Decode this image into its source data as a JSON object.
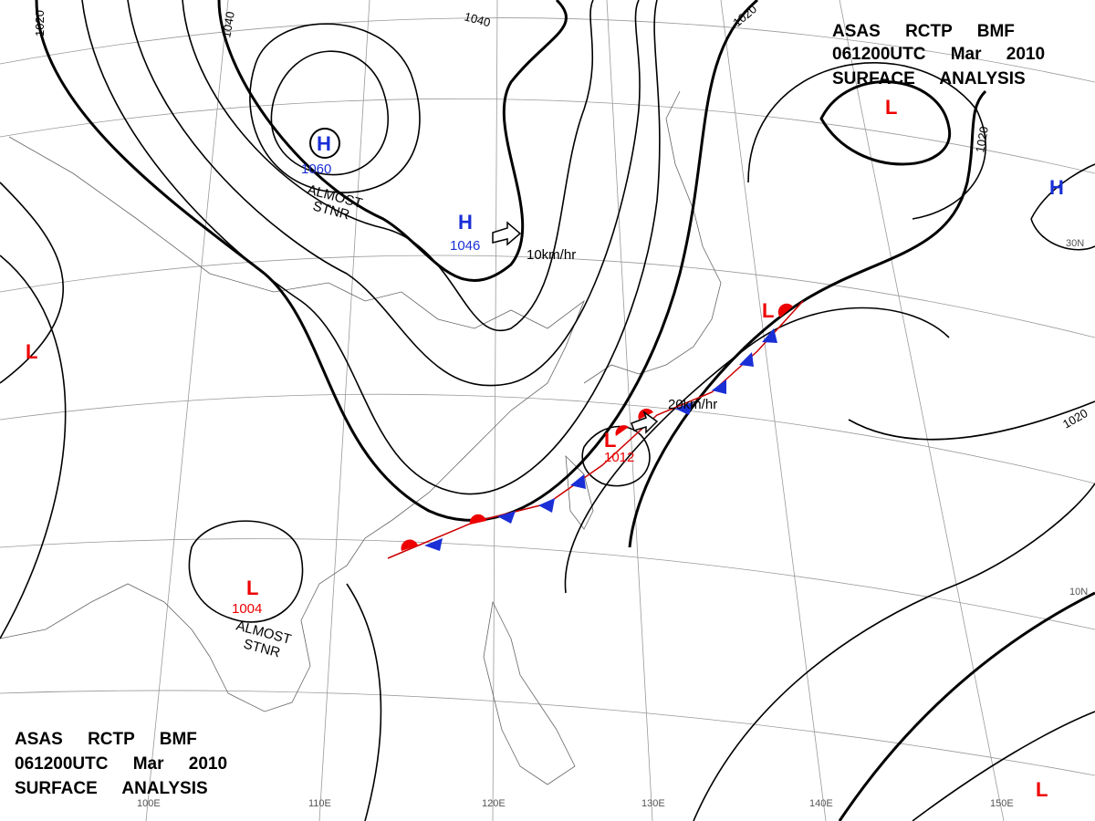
{
  "title_blocks": [
    {
      "lines": [
        "ASAS RCTP BMF",
        "061200UTC Mar 2010",
        "SURFACE ANALYSIS"
      ]
    },
    {
      "lines": [
        "ASAS RCTP BMF",
        "061200UTC Mar 2010",
        "SURFACE ANALYSIS"
      ]
    }
  ],
  "pressure_centers": [
    {
      "symbol": "H",
      "value": 1060
    },
    {
      "symbol": "H",
      "value": 1046
    },
    {
      "symbol": "L",
      "value": 1004
    },
    {
      "symbol": "L",
      "value": 1012
    },
    {
      "symbol": "H"
    },
    {
      "symbol": "L"
    },
    {
      "symbol": "L"
    },
    {
      "symbol": "L"
    },
    {
      "symbol": "L"
    }
  ],
  "isobar_labels": [
    1020,
    1040,
    1040,
    1020,
    1020,
    1020
  ],
  "notes": [
    {
      "lines": [
        "ALMOST",
        "STNR"
      ]
    },
    {
      "lines": [
        "ALMOST",
        "STNR"
      ]
    }
  ],
  "motion_labels": [
    "10km/hr",
    "20km/hr"
  ],
  "longitudes": [
    "100E",
    "110E",
    "120E",
    "130E",
    "140E",
    "150E"
  ],
  "latitudes": [
    "30N",
    "10N"
  ]
}
